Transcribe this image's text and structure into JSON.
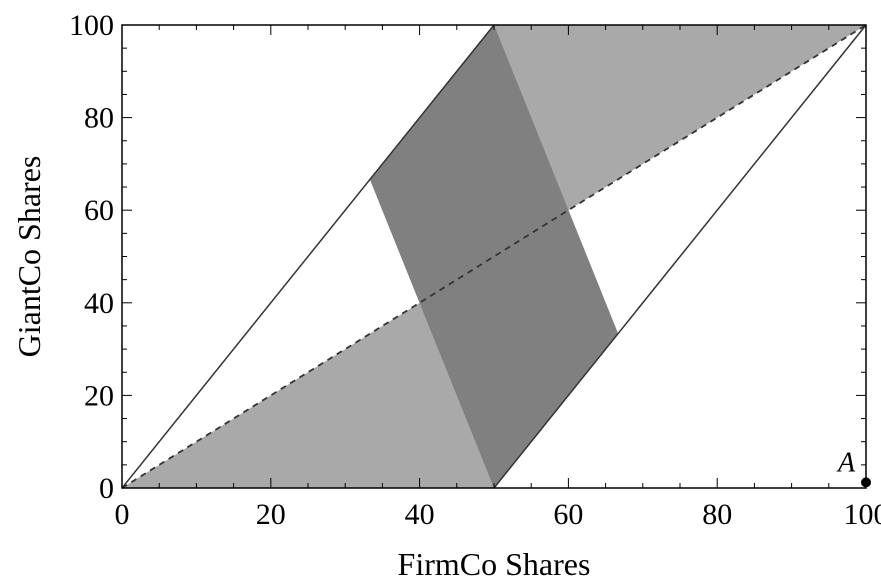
{
  "chart_data": {
    "type": "area",
    "title": "",
    "xlabel": "FirmCo Shares",
    "ylabel": "GiantCo Shares",
    "xlim": [
      0,
      100
    ],
    "ylim": [
      0,
      100
    ],
    "xticks": [
      0,
      20,
      40,
      60,
      80,
      100
    ],
    "yticks": [
      0,
      20,
      40,
      60,
      80,
      100
    ],
    "xtick_labels": [
      "0",
      "20",
      "40",
      "60",
      "80",
      "100"
    ],
    "ytick_labels": [
      "0",
      "20",
      "40",
      "60",
      "80",
      "100"
    ],
    "grid": false,
    "regions": [
      {
        "shade": "light",
        "color": "#a9a9a9",
        "points": [
          [
            0,
            0
          ],
          [
            50,
            0
          ],
          [
            50,
            100
          ],
          [
            100,
            100
          ]
        ]
      },
      {
        "shade": "dark",
        "color": "#808080",
        "points": [
          [
            33.3,
            66.7
          ],
          [
            50,
            100
          ],
          [
            66.7,
            33.3
          ],
          [
            50,
            0
          ]
        ]
      }
    ],
    "boundary_lines": [
      {
        "points": [
          [
            0,
            0
          ],
          [
            50,
            100
          ]
        ],
        "style": "solid"
      },
      {
        "points": [
          [
            50,
            0
          ],
          [
            100,
            100
          ]
        ],
        "style": "solid"
      }
    ],
    "diagonal_line": {
      "points": [
        [
          0,
          0
        ],
        [
          100,
          100
        ]
      ],
      "style": "dashed"
    },
    "point": {
      "label": "A",
      "x": 100,
      "y": 1
    }
  }
}
